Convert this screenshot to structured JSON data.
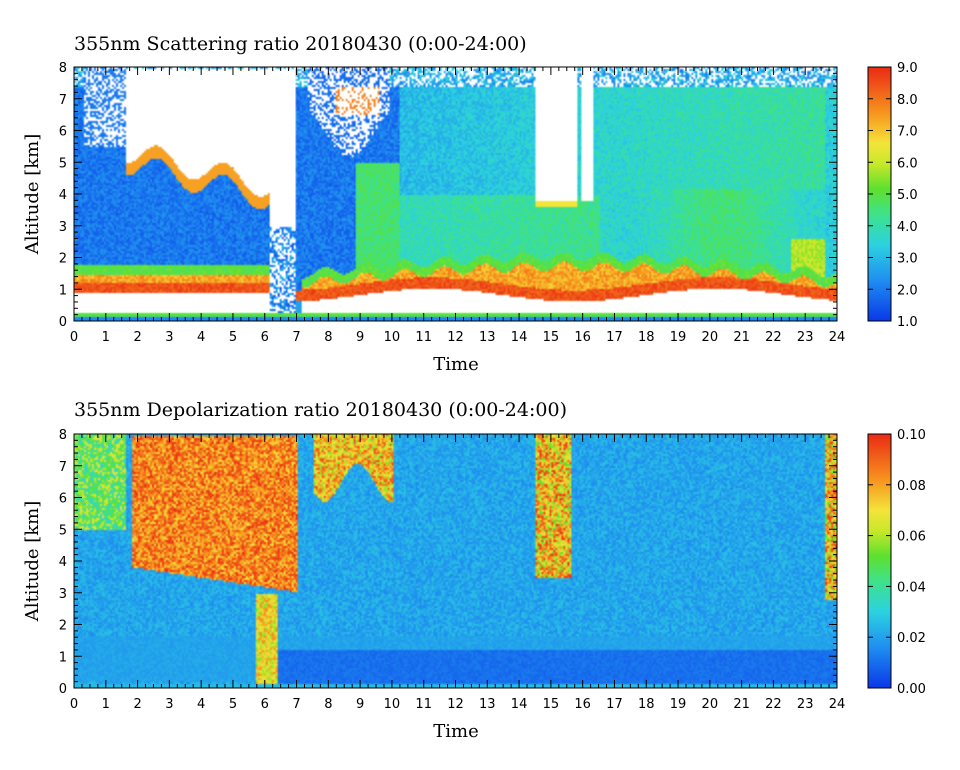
{
  "chart_data": [
    {
      "type": "heatmap",
      "title": "355nm Scattering ratio  20180430 (0:00-24:00)",
      "xlabel": "Time",
      "ylabel": "Altitude [km]",
      "xlim": [
        0,
        24
      ],
      "ylim": [
        0,
        8
      ],
      "x_ticks": [
        "0",
        "1",
        "2",
        "3",
        "4",
        "5",
        "6",
        "7",
        "8",
        "9",
        "10",
        "11",
        "12",
        "13",
        "14",
        "15",
        "16",
        "17",
        "18",
        "19",
        "20",
        "21",
        "22",
        "23",
        "24"
      ],
      "y_ticks": [
        "0",
        "1",
        "2",
        "3",
        "4",
        "5",
        "6",
        "7",
        "8"
      ],
      "colorbar": {
        "range": [
          1.0,
          9.0
        ],
        "ticks": [
          "1.0",
          "2.0",
          "3.0",
          "4.0",
          "5.0",
          "6.0",
          "7.0",
          "8.0",
          "9.0"
        ],
        "colormap": "jet"
      },
      "missing_color": "#ffffff"
    },
    {
      "type": "heatmap",
      "title": "355nm Depolarization ratio  20180430 (0:00-24:00)",
      "xlabel": "Time",
      "ylabel": "Altitude [km]",
      "xlim": [
        0,
        24
      ],
      "ylim": [
        0,
        8
      ],
      "x_ticks": [
        "0",
        "1",
        "2",
        "3",
        "4",
        "5",
        "6",
        "7",
        "8",
        "9",
        "10",
        "11",
        "12",
        "13",
        "14",
        "15",
        "16",
        "17",
        "18",
        "19",
        "20",
        "21",
        "22",
        "23",
        "24"
      ],
      "y_ticks": [
        "0",
        "1",
        "2",
        "3",
        "4",
        "5",
        "6",
        "7",
        "8"
      ],
      "colorbar": {
        "range": [
          0.0,
          0.1
        ],
        "ticks": [
          "0.00",
          "0.02",
          "0.04",
          "0.06",
          "0.08",
          "0.10"
        ],
        "colormap": "jet"
      }
    }
  ]
}
